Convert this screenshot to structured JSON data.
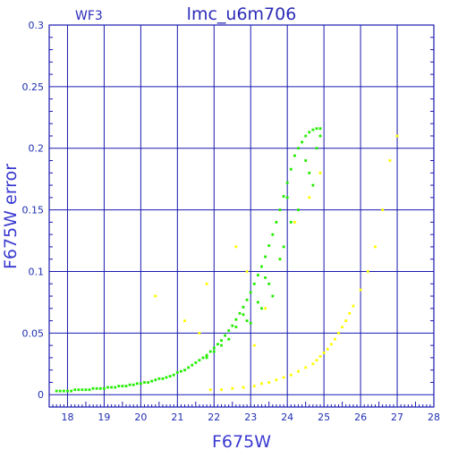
{
  "chart_data": {
    "type": "scatter",
    "title": "lmc_u6m706",
    "corner_label": "WF3",
    "xlabel": "F675W",
    "ylabel": "F675W error",
    "xlim": [
      17.5,
      28
    ],
    "ylim": [
      -0.01,
      0.3
    ],
    "xticks": [
      "18",
      "19",
      "20",
      "21",
      "22",
      "23",
      "24",
      "25",
      "26",
      "27",
      "28"
    ],
    "yticks": [
      "0",
      "0.05",
      "0.1",
      "0.15",
      "0.2",
      "0.25",
      "0.3"
    ],
    "grid": true,
    "colors": {
      "frame": "#1a1ab0",
      "grid": "#1a1ab0",
      "green": "#22ee00",
      "yellow": "#ffff00"
    },
    "series": [
      {
        "color": "#22ee00",
        "x": [
          17.7,
          17.8,
          17.9,
          18.0,
          18.1,
          18.2,
          18.3,
          18.4,
          18.5,
          18.6,
          18.7,
          18.8,
          18.9,
          19.0,
          19.1,
          19.2,
          19.3,
          19.4,
          19.5,
          19.6,
          19.7,
          19.8,
          19.9,
          20.0,
          20.1,
          20.2,
          20.3,
          20.4,
          20.5,
          20.6,
          20.7,
          20.8,
          20.9,
          21.0,
          21.1,
          21.2,
          21.3,
          21.4,
          21.5,
          21.6,
          21.7,
          21.8,
          21.9,
          22.0,
          22.1,
          22.2,
          22.3,
          22.4,
          22.5,
          22.6,
          22.7,
          22.8,
          22.9,
          23.0,
          23.1,
          23.2,
          23.3,
          23.4,
          23.5,
          23.6,
          23.7,
          23.8,
          23.9,
          24.0,
          24.1,
          24.2,
          24.3,
          24.4,
          24.5,
          24.6,
          24.7,
          24.8,
          24.9,
          22.9,
          23.2,
          23.5,
          23.8,
          24.1,
          22.4,
          23.0,
          23.6,
          24.3,
          22.0,
          22.6,
          23.3,
          23.9,
          24.5,
          21.8,
          22.2,
          22.8,
          23.4,
          24.0,
          24.6,
          24.8,
          24.7,
          24.9
        ],
        "y": [
          0.003,
          0.003,
          0.003,
          0.003,
          0.003,
          0.004,
          0.004,
          0.004,
          0.004,
          0.004,
          0.005,
          0.005,
          0.005,
          0.005,
          0.006,
          0.006,
          0.006,
          0.007,
          0.007,
          0.007,
          0.008,
          0.008,
          0.009,
          0.009,
          0.01,
          0.01,
          0.011,
          0.012,
          0.013,
          0.013,
          0.014,
          0.015,
          0.016,
          0.018,
          0.019,
          0.02,
          0.022,
          0.024,
          0.026,
          0.028,
          0.03,
          0.032,
          0.035,
          0.038,
          0.041,
          0.044,
          0.048,
          0.052,
          0.056,
          0.061,
          0.066,
          0.071,
          0.077,
          0.083,
          0.09,
          0.097,
          0.104,
          0.112,
          0.121,
          0.13,
          0.14,
          0.15,
          0.161,
          0.172,
          0.183,
          0.194,
          0.2,
          0.205,
          0.21,
          0.213,
          0.215,
          0.216,
          0.216,
          0.06,
          0.075,
          0.09,
          0.11,
          0.14,
          0.045,
          0.058,
          0.08,
          0.15,
          0.035,
          0.055,
          0.07,
          0.12,
          0.19,
          0.03,
          0.04,
          0.065,
          0.095,
          0.16,
          0.18,
          0.2,
          0.17,
          0.21
        ]
      },
      {
        "color": "#ffff00",
        "x": [
          21.9,
          22.2,
          22.5,
          22.8,
          23.1,
          23.3,
          23.5,
          23.7,
          23.9,
          24.1,
          24.3,
          24.5,
          24.7,
          24.8,
          24.9,
          25.0,
          25.1,
          25.2,
          25.3,
          25.4,
          25.5,
          25.6,
          25.7,
          25.8,
          26.0,
          26.2,
          26.4,
          26.6,
          26.8,
          27.0,
          20.4,
          21.2,
          21.8,
          22.6,
          23.4,
          23.8,
          24.2,
          24.6,
          24.9,
          22.9,
          21.6,
          23.1
        ],
        "y": [
          0.004,
          0.004,
          0.005,
          0.006,
          0.007,
          0.009,
          0.01,
          0.012,
          0.014,
          0.016,
          0.019,
          0.022,
          0.025,
          0.028,
          0.031,
          0.034,
          0.037,
          0.041,
          0.045,
          0.05,
          0.055,
          0.06,
          0.066,
          0.072,
          0.085,
          0.1,
          0.12,
          0.15,
          0.19,
          0.21,
          0.08,
          0.06,
          0.09,
          0.12,
          0.07,
          0.11,
          0.14,
          0.16,
          0.18,
          0.1,
          0.05,
          0.04
        ]
      }
    ]
  }
}
